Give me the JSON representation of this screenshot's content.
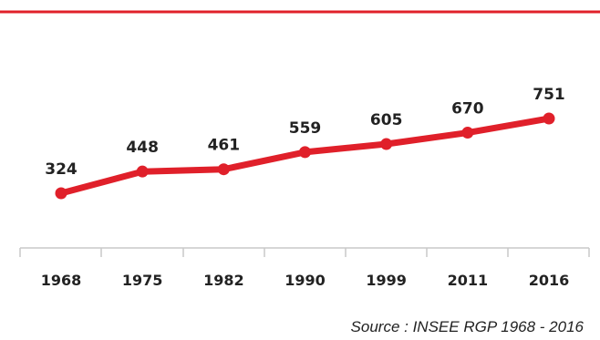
{
  "chart_data": {
    "type": "line",
    "categories": [
      "1968",
      "1975",
      "1982",
      "1990",
      "1999",
      "2011",
      "2016"
    ],
    "values": [
      324,
      448,
      461,
      559,
      605,
      670,
      751
    ],
    "data_labels": [
      "324",
      "448",
      "461",
      "559",
      "605",
      "670",
      "751"
    ],
    "title": "",
    "xlabel": "",
    "ylabel": "",
    "grid": false,
    "legend": "none"
  },
  "source": "Source : INSEE RGP 1968 - 2016",
  "colors": {
    "line": "#e0202a",
    "top_rule": "#e0202a",
    "axis": "#c8c8c8",
    "text": "#222222"
  }
}
